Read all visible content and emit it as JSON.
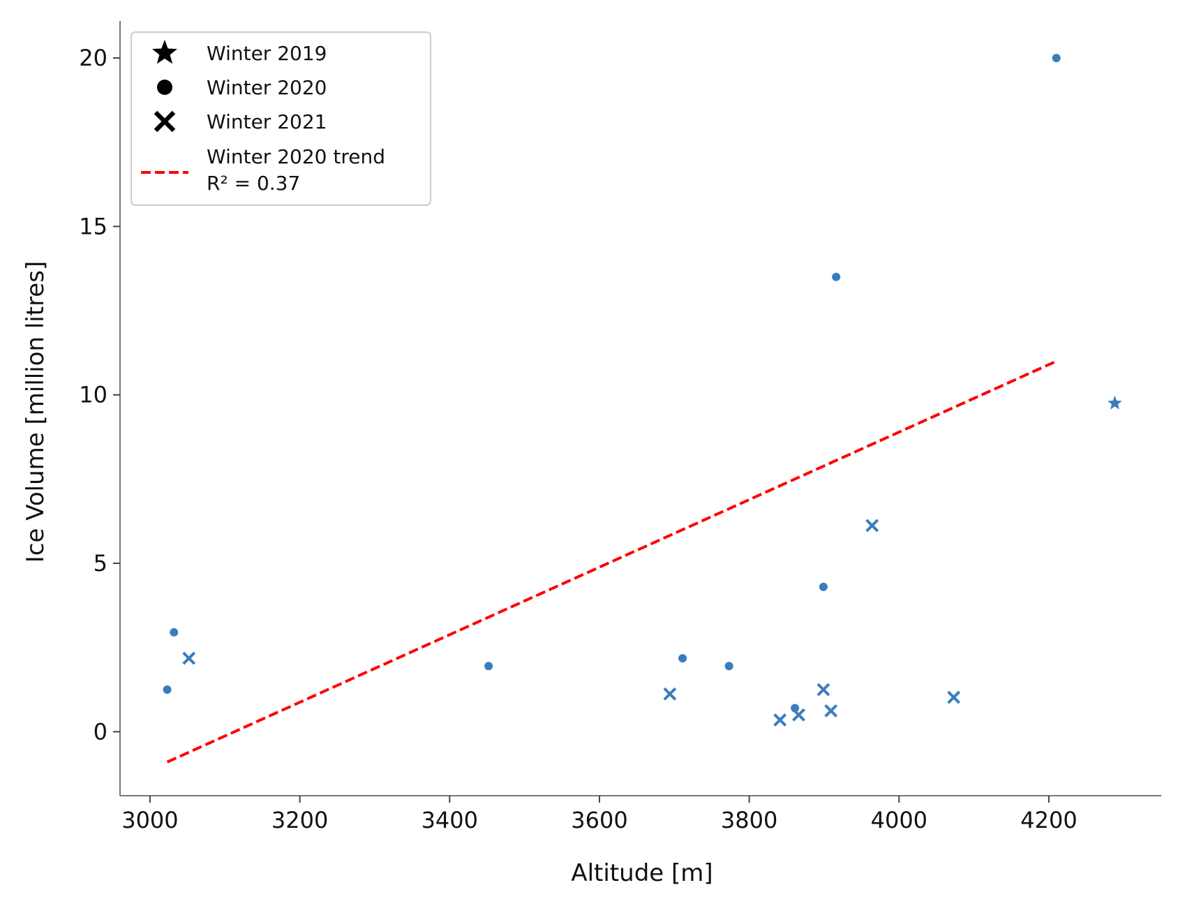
{
  "chart_data": {
    "type": "scatter",
    "xlabel": "Altitude [m]",
    "ylabel": "Ice Volume [million litres]",
    "xlim": [
      2960,
      4350
    ],
    "ylim": [
      -1.9,
      21.1
    ],
    "xticks": [
      3000,
      3200,
      3400,
      3600,
      3800,
      4000,
      4200
    ],
    "yticks": [
      0,
      5,
      10,
      15,
      20
    ],
    "grid": false,
    "legend_position": "top-left",
    "marker_color": "#3a7dbf",
    "trend_color": "#ff0000",
    "series": [
      {
        "name": "Winter 2019",
        "marker": "star",
        "points": [
          [
            4288,
            9.75
          ]
        ]
      },
      {
        "name": "Winter 2020",
        "marker": "circle",
        "points": [
          [
            3023,
            1.25
          ],
          [
            3032,
            2.95
          ],
          [
            3452,
            1.95
          ],
          [
            3711,
            2.18
          ],
          [
            3773,
            1.95
          ],
          [
            3861,
            0.7
          ],
          [
            3899,
            4.3
          ],
          [
            3916,
            13.5
          ],
          [
            4210,
            20.0
          ]
        ]
      },
      {
        "name": "Winter 2021",
        "marker": "x",
        "points": [
          [
            3052,
            2.18
          ],
          [
            3694,
            1.12
          ],
          [
            3841,
            0.35
          ],
          [
            3866,
            0.5
          ],
          [
            3899,
            1.25
          ],
          [
            3909,
            0.62
          ],
          [
            3964,
            6.12
          ],
          [
            4073,
            1.02
          ]
        ]
      }
    ],
    "trend": {
      "name": "Winter 2020 trend",
      "r2_label": "R² = 0.37",
      "x": [
        3023,
        4210
      ],
      "y": [
        -0.9,
        11.0
      ]
    }
  }
}
